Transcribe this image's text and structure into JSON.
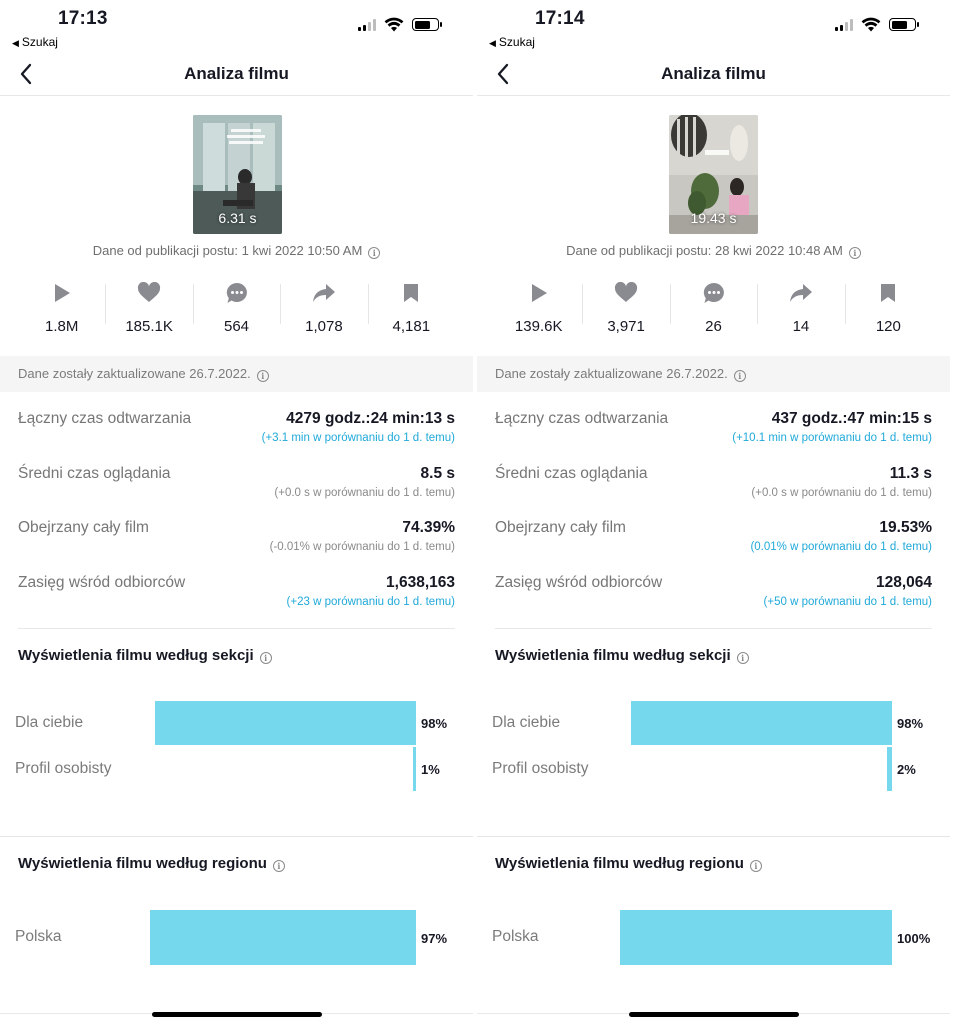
{
  "panels": [
    {
      "status_time": "17:13",
      "status_back": "Szukaj",
      "nav_title": "Analiza filmu",
      "thumbnail_duration": "6.31 s",
      "published": "Dane od publikacji postu: 1 kwi 2022 10:50 AM",
      "stats": {
        "plays": "1.8M",
        "likes": "185.1K",
        "comments": "564",
        "shares": "1,078",
        "saves": "4,181"
      },
      "updated": "Dane zostały zaktualizowane 26.7.2022.",
      "metrics": [
        {
          "label": "Łączny czas odtwarzania",
          "value": "4279 godz.:24 min:13 s",
          "compare": "(+3.1 min w porównaniu do 1 d. temu)",
          "highlight": true
        },
        {
          "label": "Średni czas oglądania",
          "value": "8.5 s",
          "compare": "(+0.0 s w porównaniu do 1 d. temu)",
          "highlight": false
        },
        {
          "label": "Obejrzany cały film",
          "value": "74.39%",
          "compare": "(-0.01% w porównaniu do 1 d. temu)",
          "highlight": false
        },
        {
          "label": "Zasięg wśród odbiorców",
          "value": "1,638,163",
          "compare": "(+23 w porównaniu do 1 d. temu)",
          "highlight": true
        }
      ],
      "section_title": "Wyświetlenia filmu według sekcji",
      "section_bars": [
        {
          "label": "Dla ciebie",
          "pct_text": "98%",
          "value": 0.98
        },
        {
          "label": "Profil osobisty",
          "pct_text": "1%",
          "value": 0.01
        }
      ],
      "region_title": "Wyświetlenia filmu według regionu",
      "region_bars": [
        {
          "label": "Polska",
          "pct_text": "97%",
          "value": 0.97
        }
      ]
    },
    {
      "status_time": "17:14",
      "status_back": "Szukaj",
      "nav_title": "Analiza filmu",
      "thumbnail_duration": "19.43 s",
      "published": "Dane od publikacji postu: 28 kwi 2022 10:48 AM",
      "stats": {
        "plays": "139.6K",
        "likes": "3,971",
        "comments": "26",
        "shares": "14",
        "saves": "120"
      },
      "updated": "Dane zostały zaktualizowane 26.7.2022.",
      "metrics": [
        {
          "label": "Łączny czas odtwarzania",
          "value": "437 godz.:47 min:15 s",
          "compare": "(+10.1 min w porównaniu do 1 d. temu)",
          "highlight": true
        },
        {
          "label": "Średni czas oglądania",
          "value": "11.3 s",
          "compare": "(+0.0 s w porównaniu do 1 d. temu)",
          "highlight": false
        },
        {
          "label": "Obejrzany cały film",
          "value": "19.53%",
          "compare": "(0.01% w porównaniu do 1 d. temu)",
          "highlight": true
        },
        {
          "label": "Zasięg wśród odbiorców",
          "value": "128,064",
          "compare": "(+50 w porównaniu do 1 d. temu)",
          "highlight": true
        }
      ],
      "section_title": "Wyświetlenia filmu według sekcji",
      "section_bars": [
        {
          "label": "Dla ciebie",
          "pct_text": "98%",
          "value": 0.98
        },
        {
          "label": "Profil osobisty",
          "pct_text": "2%",
          "value": 0.02
        }
      ],
      "region_title": "Wyświetlenia filmu według regionu",
      "region_bars": [
        {
          "label": "Polska",
          "pct_text": "100%",
          "value": 1.0
        }
      ]
    }
  ],
  "colors": {
    "bar": "#75d8ec",
    "compare_highlight": "#20a9d9",
    "icon_grey": "#8a8b91"
  }
}
